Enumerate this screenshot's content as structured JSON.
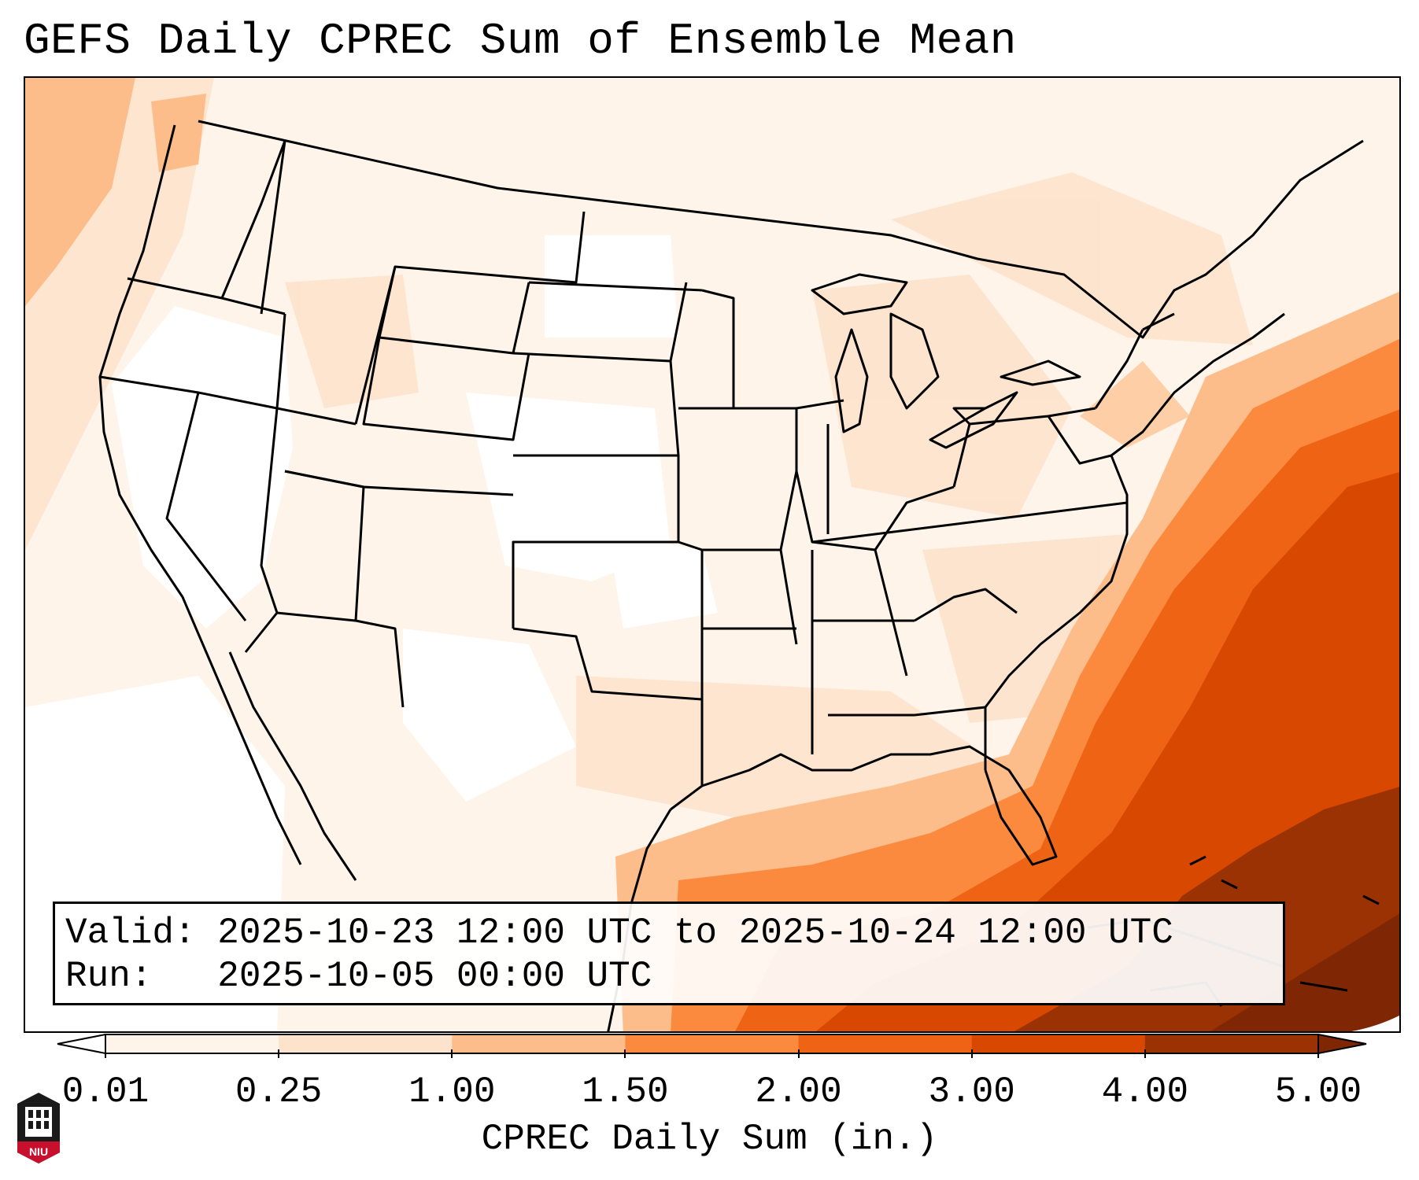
{
  "title": "GEFS Daily CPREC Sum of Ensemble Mean",
  "info": {
    "valid_label": "Valid:",
    "valid_value": "2025-10-23 12:00 UTC to 2025-10-24 12:00 UTC",
    "run_label": "Run:",
    "run_value": "2025-10-05 00:00 UTC"
  },
  "colorbar": {
    "label": "CPREC Daily Sum (in.)",
    "ticks": [
      "0.01",
      "0.25",
      "1.00",
      "1.50",
      "2.00",
      "3.00",
      "4.00",
      "5.00"
    ],
    "colors": [
      "#fef4ea",
      "#fde3cc",
      "#fdbd8a",
      "#fb8a3e",
      "#ef6414",
      "#d84800",
      "#9a3203"
    ],
    "under_color": "#ffffff",
    "over_color": "#7f2704",
    "extend": "both"
  },
  "logo": {
    "text": "NIU",
    "name": "Northern Illinois University"
  }
}
